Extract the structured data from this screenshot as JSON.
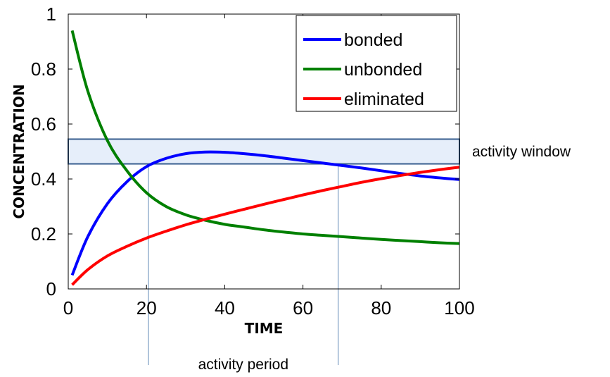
{
  "chart_data": {
    "type": "line",
    "xlabel": "TIME",
    "ylabel": "CONCENTRATION",
    "xlim": [
      0,
      100
    ],
    "ylim": [
      0,
      1
    ],
    "xticks": [
      "0",
      "20",
      "40",
      "60",
      "80",
      "100"
    ],
    "yticks": [
      "0",
      "0.2",
      "0.4",
      "0.6",
      "0.8",
      "1"
    ],
    "grid": false,
    "legend_position": "top-right",
    "series": [
      {
        "name": "bonded",
        "color": "#0000ff",
        "x": [
          1,
          5,
          10,
          15,
          20,
          25,
          30,
          35,
          40,
          45,
          50,
          55,
          60,
          65,
          70,
          75,
          80,
          85,
          90,
          95,
          100
        ],
        "y": [
          0.05,
          0.19,
          0.31,
          0.39,
          0.445,
          0.475,
          0.492,
          0.498,
          0.497,
          0.492,
          0.485,
          0.476,
          0.467,
          0.458,
          0.449,
          0.44,
          0.43,
          0.42,
          0.411,
          0.404,
          0.398
        ]
      },
      {
        "name": "unbonded",
        "color": "#008000",
        "x": [
          1,
          5,
          10,
          15,
          20,
          25,
          30,
          35,
          40,
          45,
          50,
          55,
          60,
          65,
          70,
          75,
          80,
          85,
          90,
          95,
          100
        ],
        "y": [
          0.94,
          0.72,
          0.54,
          0.43,
          0.35,
          0.3,
          0.27,
          0.25,
          0.235,
          0.225,
          0.215,
          0.207,
          0.2,
          0.195,
          0.19,
          0.185,
          0.18,
          0.176,
          0.172,
          0.168,
          0.165
        ]
      },
      {
        "name": "eliminated",
        "color": "#ff0000",
        "x": [
          1,
          5,
          10,
          15,
          20,
          25,
          30,
          35,
          40,
          45,
          50,
          55,
          60,
          65,
          70,
          75,
          80,
          85,
          90,
          95,
          100
        ],
        "y": [
          0.015,
          0.07,
          0.12,
          0.155,
          0.185,
          0.21,
          0.233,
          0.253,
          0.272,
          0.29,
          0.308,
          0.325,
          0.342,
          0.358,
          0.373,
          0.388,
          0.401,
          0.413,
          0.424,
          0.434,
          0.443
        ]
      }
    ],
    "activity_window": {
      "label": "activity window",
      "y_range": [
        0.455,
        0.545
      ],
      "fill": "#e6eefa",
      "stroke": "#3a5f8f"
    },
    "activity_period": {
      "label": "activity period",
      "x_range": [
        20.5,
        69
      ],
      "color": "#7a9cc2"
    }
  }
}
